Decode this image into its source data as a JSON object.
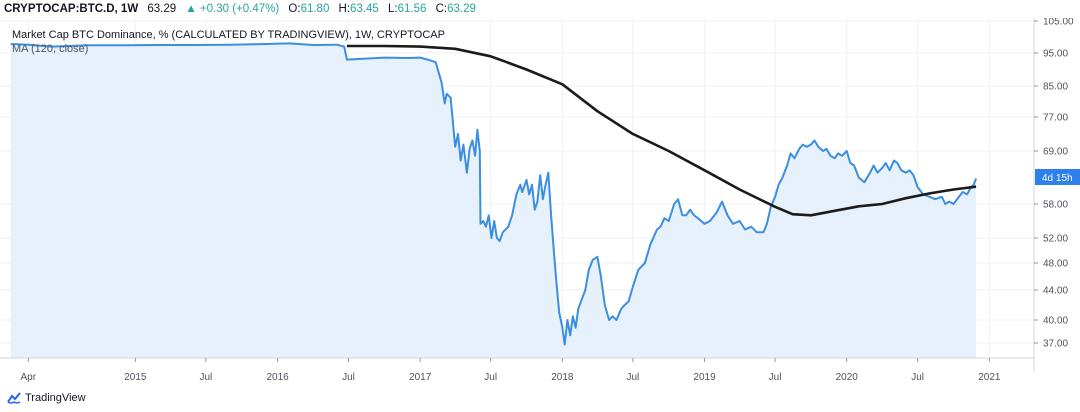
{
  "header": {
    "symbol": "CRYPTOCAP:BTC.D, 1W",
    "last": "63.29",
    "change": "▲ +0.30 (+0.47%)",
    "open_label": "O:",
    "open": "61.80",
    "high_label": "H:",
    "high": "63.45",
    "low_label": "L:",
    "low": "61.56",
    "close_label": "C:",
    "close": "63.29"
  },
  "legend": {
    "series_title": "Market Cap BTC Dominance, % (CALCULATED BY TRADINGVIEW), 1W, CRYPTOCAP",
    "ma_title": "MA (120, close)"
  },
  "price_badge": "4d 15h",
  "footer": {
    "brand": "TradingView"
  },
  "colors": {
    "line": "#3c8fe0",
    "fill": "#e6f1fc",
    "ma": "#1b1b1b",
    "badge": "#2f80ed",
    "grid": "#eef1f5"
  },
  "chart_data": {
    "type": "line",
    "x_tick_labels": [
      "Apr",
      "2015",
      "Jul",
      "2016",
      "Jul",
      "2017",
      "Jul",
      "2018",
      "Jul",
      "2019",
      "Jul",
      "2020",
      "Jul",
      "2021"
    ],
    "x_tick_dates": [
      "2014-04-01",
      "2015-01-01",
      "2015-07-01",
      "2016-01-01",
      "2016-07-01",
      "2017-01-01",
      "2017-07-01",
      "2018-01-01",
      "2018-07-01",
      "2019-01-01",
      "2019-07-01",
      "2020-01-01",
      "2020-07-01",
      "2021-01-01"
    ],
    "y_ticks": [
      37.0,
      40.0,
      44.0,
      48.0,
      52.0,
      58.0,
      69.0,
      77.0,
      85.0,
      95.0,
      105.0
    ],
    "y_tick_labels": [
      "37.00",
      "40.00",
      "44.00",
      "48.00",
      "52.00",
      "58.00",
      "69.00",
      "77.00",
      "85.00",
      "95.00",
      "105.00"
    ],
    "series": [
      {
        "name": "Market Cap BTC Dominance",
        "type": "area",
        "points": [
          [
            "2014-02-15",
            97.8
          ],
          [
            "2014-04-01",
            97.6
          ],
          [
            "2014-06-01",
            97.0
          ],
          [
            "2014-09-01",
            97.4
          ],
          [
            "2014-12-01",
            97.4
          ],
          [
            "2015-03-01",
            97.5
          ],
          [
            "2015-06-01",
            97.5
          ],
          [
            "2015-09-01",
            97.6
          ],
          [
            "2015-12-01",
            97.8
          ],
          [
            "2016-02-01",
            98.0
          ],
          [
            "2016-04-01",
            97.5
          ],
          [
            "2016-06-01",
            97.6
          ],
          [
            "2016-06-20",
            97.0
          ],
          [
            "2016-06-27",
            93.0
          ],
          [
            "2016-08-01",
            93.2
          ],
          [
            "2016-10-01",
            93.6
          ],
          [
            "2016-12-01",
            93.5
          ],
          [
            "2017-01-01",
            93.6
          ],
          [
            "2017-01-20",
            93.0
          ],
          [
            "2017-02-10",
            92.2
          ],
          [
            "2017-02-25",
            86.0
          ],
          [
            "2017-03-05",
            80.5
          ],
          [
            "2017-03-10",
            83.0
          ],
          [
            "2017-03-20",
            82.0
          ],
          [
            "2017-04-01",
            70.0
          ],
          [
            "2017-04-08",
            73.0
          ],
          [
            "2017-04-15",
            67.0
          ],
          [
            "2017-04-22",
            70.5
          ],
          [
            "2017-05-01",
            64.5
          ],
          [
            "2017-05-08",
            69.5
          ],
          [
            "2017-05-15",
            71.5
          ],
          [
            "2017-05-22",
            68.0
          ],
          [
            "2017-05-28",
            74.0
          ],
          [
            "2017-06-03",
            69.0
          ],
          [
            "2017-06-05",
            54.5
          ],
          [
            "2017-06-12",
            55.0
          ],
          [
            "2017-06-19",
            54.0
          ],
          [
            "2017-06-26",
            56.0
          ],
          [
            "2017-07-03",
            52.0
          ],
          [
            "2017-07-10",
            55.0
          ],
          [
            "2017-07-17",
            52.0
          ],
          [
            "2017-07-24",
            51.5
          ],
          [
            "2017-08-01",
            53.0
          ],
          [
            "2017-08-15",
            54.0
          ],
          [
            "2017-08-25",
            56.0
          ],
          [
            "2017-09-05",
            60.0
          ],
          [
            "2017-09-15",
            62.0
          ],
          [
            "2017-09-20",
            60.5
          ],
          [
            "2017-10-01",
            63.0
          ],
          [
            "2017-10-08",
            60.0
          ],
          [
            "2017-10-15",
            62.0
          ],
          [
            "2017-10-22",
            57.0
          ],
          [
            "2017-10-29",
            58.5
          ],
          [
            "2017-11-05",
            64.0
          ],
          [
            "2017-11-12",
            59.0
          ],
          [
            "2017-11-19",
            62.0
          ],
          [
            "2017-11-26",
            64.5
          ],
          [
            "2017-12-03",
            56.0
          ],
          [
            "2017-12-10",
            50.0
          ],
          [
            "2017-12-17",
            45.0
          ],
          [
            "2017-12-24",
            41.0
          ],
          [
            "2018-01-01",
            39.0
          ],
          [
            "2018-01-07",
            36.8
          ],
          [
            "2018-01-14",
            40.0
          ],
          [
            "2018-01-21",
            38.0
          ],
          [
            "2018-01-28",
            40.5
          ],
          [
            "2018-02-04",
            39.0
          ],
          [
            "2018-02-11",
            41.5
          ],
          [
            "2018-02-18",
            42.5
          ],
          [
            "2018-03-01",
            44.0
          ],
          [
            "2018-03-10",
            47.0
          ],
          [
            "2018-03-20",
            48.5
          ],
          [
            "2018-04-01",
            49.0
          ],
          [
            "2018-04-10",
            46.0
          ],
          [
            "2018-04-20",
            42.0
          ],
          [
            "2018-05-01",
            40.0
          ],
          [
            "2018-05-10",
            40.5
          ],
          [
            "2018-05-20",
            40.0
          ],
          [
            "2018-06-01",
            41.5
          ],
          [
            "2018-06-10",
            42.0
          ],
          [
            "2018-06-20",
            42.5
          ],
          [
            "2018-07-01",
            44.5
          ],
          [
            "2018-07-15",
            47.0
          ],
          [
            "2018-08-01",
            48.0
          ],
          [
            "2018-08-15",
            51.0
          ],
          [
            "2018-09-01",
            53.5
          ],
          [
            "2018-09-10",
            54.0
          ],
          [
            "2018-09-20",
            55.5
          ],
          [
            "2018-10-01",
            55.0
          ],
          [
            "2018-10-15",
            58.0
          ],
          [
            "2018-10-25",
            59.0
          ],
          [
            "2018-11-05",
            56.0
          ],
          [
            "2018-11-15",
            56.0
          ],
          [
            "2018-11-25",
            57.0
          ],
          [
            "2018-12-05",
            56.0
          ],
          [
            "2018-12-15",
            55.5
          ],
          [
            "2019-01-01",
            54.5
          ],
          [
            "2019-01-15",
            55.0
          ],
          [
            "2019-02-01",
            56.5
          ],
          [
            "2019-02-15",
            58.5
          ],
          [
            "2019-03-01",
            56.0
          ],
          [
            "2019-03-15",
            54.5
          ],
          [
            "2019-04-01",
            55.0
          ],
          [
            "2019-04-15",
            53.5
          ],
          [
            "2019-05-01",
            54.0
          ],
          [
            "2019-05-15",
            53.0
          ],
          [
            "2019-06-01",
            53.0
          ],
          [
            "2019-06-10",
            54.5
          ],
          [
            "2019-06-20",
            57.5
          ],
          [
            "2019-07-01",
            59.5
          ],
          [
            "2019-07-10",
            62.0
          ],
          [
            "2019-07-20",
            63.5
          ],
          [
            "2019-08-01",
            66.0
          ],
          [
            "2019-08-10",
            68.5
          ],
          [
            "2019-08-20",
            67.5
          ],
          [
            "2019-09-01",
            69.5
          ],
          [
            "2019-09-10",
            70.5
          ],
          [
            "2019-09-20",
            70.0
          ],
          [
            "2019-10-01",
            70.5
          ],
          [
            "2019-10-10",
            71.5
          ],
          [
            "2019-10-20",
            70.0
          ],
          [
            "2019-11-01",
            69.0
          ],
          [
            "2019-11-10",
            69.5
          ],
          [
            "2019-11-20",
            68.0
          ],
          [
            "2019-12-01",
            67.5
          ],
          [
            "2019-12-10",
            68.5
          ],
          [
            "2019-12-20",
            68.0
          ],
          [
            "2020-01-01",
            69.0
          ],
          [
            "2020-01-10",
            66.5
          ],
          [
            "2020-01-20",
            66.0
          ],
          [
            "2020-02-01",
            63.5
          ],
          [
            "2020-02-15",
            62.5
          ],
          [
            "2020-03-01",
            64.5
          ],
          [
            "2020-03-10",
            66.0
          ],
          [
            "2020-03-20",
            64.5
          ],
          [
            "2020-04-01",
            65.5
          ],
          [
            "2020-04-10",
            66.5
          ],
          [
            "2020-04-20",
            65.0
          ],
          [
            "2020-05-01",
            67.0
          ],
          [
            "2020-05-10",
            66.5
          ],
          [
            "2020-05-20",
            65.0
          ],
          [
            "2020-06-01",
            64.5
          ],
          [
            "2020-06-10",
            65.0
          ],
          [
            "2020-06-20",
            64.0
          ],
          [
            "2020-07-01",
            61.5
          ],
          [
            "2020-07-15",
            60.0
          ],
          [
            "2020-08-01",
            59.5
          ],
          [
            "2020-08-15",
            59.0
          ],
          [
            "2020-09-01",
            59.5
          ],
          [
            "2020-09-10",
            58.0
          ],
          [
            "2020-09-20",
            58.5
          ],
          [
            "2020-10-01",
            58.0
          ],
          [
            "2020-10-15",
            59.5
          ],
          [
            "2020-10-25",
            60.5
          ],
          [
            "2020-11-05",
            60.0
          ],
          [
            "2020-11-15",
            61.5
          ],
          [
            "2020-11-22",
            62.0
          ],
          [
            "2020-11-28",
            63.29
          ]
        ]
      },
      {
        "name": "MA (120, close)",
        "type": "line",
        "points": [
          [
            "2016-06-27",
            97.2
          ],
          [
            "2016-10-01",
            97.2
          ],
          [
            "2017-01-01",
            97.0
          ],
          [
            "2017-04-01",
            96.3
          ],
          [
            "2017-07-01",
            94.0
          ],
          [
            "2017-10-01",
            90.0
          ],
          [
            "2018-01-01",
            85.5
          ],
          [
            "2018-04-01",
            78.5
          ],
          [
            "2018-07-01",
            73.0
          ],
          [
            "2018-10-01",
            69.0
          ],
          [
            "2019-01-01",
            65.0
          ],
          [
            "2019-04-01",
            61.0
          ],
          [
            "2019-07-01",
            57.5
          ],
          [
            "2019-08-15",
            56.2
          ],
          [
            "2019-10-01",
            56.0
          ],
          [
            "2019-12-01",
            56.8
          ],
          [
            "2020-02-01",
            57.6
          ],
          [
            "2020-04-01",
            58.0
          ],
          [
            "2020-06-01",
            59.2
          ],
          [
            "2020-08-01",
            60.2
          ],
          [
            "2020-10-01",
            61.0
          ],
          [
            "2020-11-28",
            61.6
          ]
        ]
      }
    ]
  }
}
